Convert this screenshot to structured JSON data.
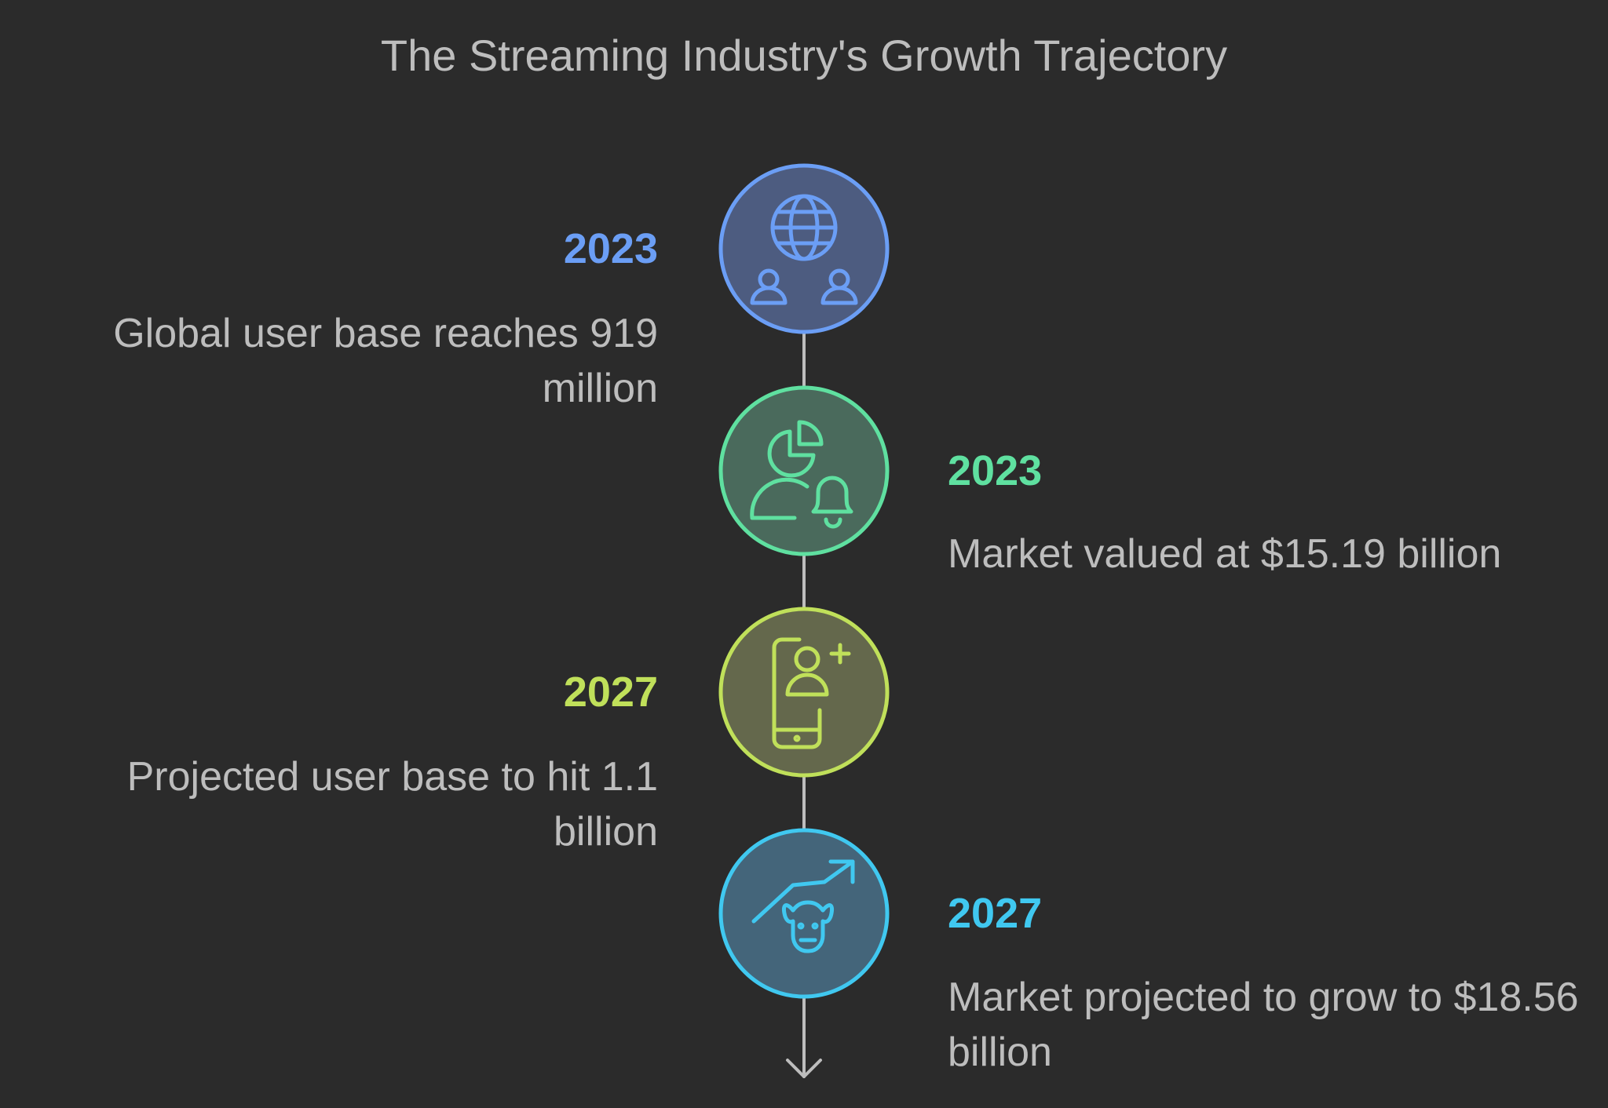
{
  "title": "The Streaming Industry's Growth Trajectory",
  "steps": [
    {
      "year": "2023",
      "text": "Global user base reaches 919 million"
    },
    {
      "year": "2023",
      "text": "Market valued at $15.19 billion"
    },
    {
      "year": "2027",
      "text": "Projected user base to hit 1.1 billion"
    },
    {
      "year": "2027",
      "text": "Market projected to grow to $18.56 billion"
    }
  ]
}
